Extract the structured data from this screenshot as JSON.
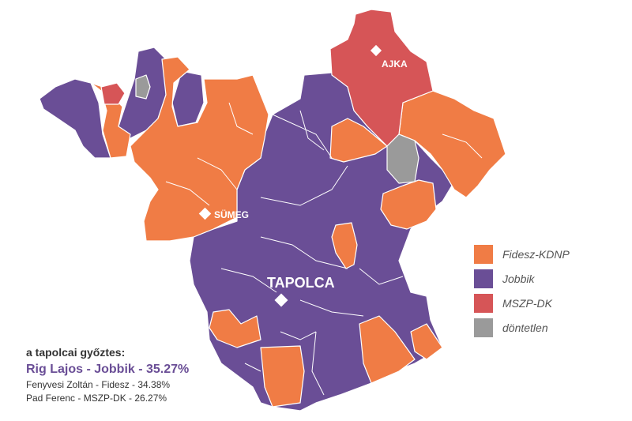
{
  "colors": {
    "fidesz": "#f07c45",
    "jobbik": "#6a4e96",
    "mszp": "#d65557",
    "tie": "#9a9a9a",
    "winner_text": "#6a4e96"
  },
  "cities": {
    "ajka": "AJKA",
    "sumeg": "SÜMEG",
    "tapolca": "TAPOLCA"
  },
  "legend": [
    {
      "label": "Fidesz-KDNP",
      "color": "#f07c45"
    },
    {
      "label": "Jobbik",
      "color": "#6a4e96"
    },
    {
      "label": "MSZP-DK",
      "color": "#d65557"
    },
    {
      "label": "döntetlen",
      "color": "#9a9a9a"
    }
  ],
  "winner": {
    "title": "a tapolcai győztes:",
    "main": "Rig Lajos - Jobbik - 35.27%",
    "second": "Fenyvesi Zoltán - Fidesz - 34.38%",
    "third": "Pad Ferenc - MSZP-DK - 26.27%"
  }
}
